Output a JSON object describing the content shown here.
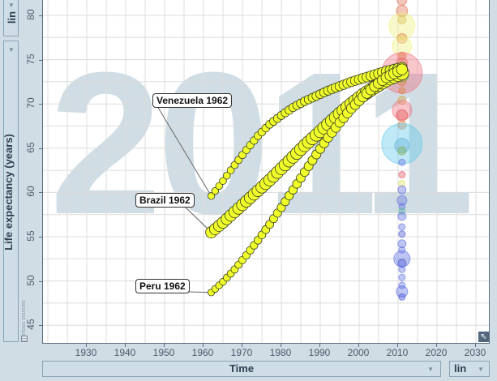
{
  "y_axis": {
    "label": "Life expectancy (years)",
    "scale": "lin",
    "ticks": [
      "80",
      "75",
      "70",
      "65",
      "60",
      "55",
      "50",
      "45"
    ]
  },
  "x_axis": {
    "label": "Time",
    "scale": "lin",
    "ticks": [
      "1930",
      "1940",
      "1950",
      "1960",
      "1970",
      "1980",
      "1990",
      "2000",
      "2010",
      "2020",
      "2030"
    ]
  },
  "year_watermark": "2011",
  "sources_text": "Various sources",
  "icons": {
    "dropdown": "▼",
    "fullscreen": "⇖"
  },
  "labels": {
    "venezuela": "Venezuela 1962",
    "brazil": "Brazil 1962",
    "peru": "Peru 1962"
  },
  "chart_data": {
    "type": "scatter",
    "title": "",
    "xlabel": "Time",
    "ylabel": "Life expectancy (years)",
    "xlim": [
      1919,
      2033
    ],
    "ylim": [
      43,
      81.7
    ],
    "grid": true,
    "current_year": 2011,
    "trail_color": "#f0ff2a",
    "trails": [
      {
        "name": "Venezuela",
        "start_label": "Venezuela 1962",
        "x": [
          1962,
          1965,
          1968,
          1971,
          1974,
          1977,
          1980,
          1983,
          1986,
          1989,
          1992,
          1995,
          1998,
          2001,
          2004,
          2007,
          2011
        ],
        "y": [
          59.6,
          61.3,
          63.1,
          64.8,
          66.4,
          67.7,
          68.7,
          69.6,
          70.3,
          70.9,
          71.5,
          72.0,
          72.5,
          72.9,
          73.3,
          73.7,
          74.1
        ],
        "size": "small"
      },
      {
        "name": "Brazil",
        "start_label": "Brazil 1962",
        "x": [
          1962,
          1965,
          1968,
          1971,
          1974,
          1977,
          1980,
          1983,
          1986,
          1989,
          1992,
          1995,
          1998,
          2001,
          2004,
          2007,
          2011
        ],
        "y": [
          55.5,
          56.6,
          57.8,
          59.0,
          60.2,
          61.4,
          62.7,
          64.0,
          65.3,
          66.5,
          67.7,
          68.9,
          70.0,
          71.0,
          71.9,
          72.7,
          73.5
        ],
        "size": "large"
      },
      {
        "name": "Peru",
        "start_label": "Peru 1962",
        "x": [
          1962,
          1965,
          1968,
          1971,
          1974,
          1977,
          1980,
          1983,
          1986,
          1989,
          1992,
          1995,
          1998,
          2001,
          2004,
          2007,
          2011
        ],
        "y": [
          48.7,
          49.9,
          51.3,
          52.9,
          54.6,
          56.4,
          58.3,
          60.3,
          62.3,
          64.3,
          66.2,
          67.9,
          69.5,
          70.8,
          72.0,
          73.0,
          73.9
        ],
        "size": "medium"
      }
    ],
    "bubbles_2011": [
      {
        "y": 81.7,
        "r": 6,
        "color": "#e07050"
      },
      {
        "y": 80.5,
        "r": 7,
        "color": "#e07050"
      },
      {
        "y": 79.5,
        "r": 5,
        "color": "#d0a040"
      },
      {
        "y": 78.8,
        "r": 16,
        "color": "#eef07a"
      },
      {
        "y": 77.4,
        "r": 6,
        "color": "#e08040"
      },
      {
        "y": 76.5,
        "r": 12,
        "color": "#eef07a"
      },
      {
        "y": 75.4,
        "r": 5,
        "color": "#e07050"
      },
      {
        "y": 74.6,
        "r": 7,
        "color": "#e07050"
      },
      {
        "y": 73.5,
        "r": 25,
        "color": "#f07080"
      },
      {
        "y": 73.2,
        "r": 8,
        "color": "#50c040"
      },
      {
        "y": 72.5,
        "r": 5,
        "color": "#e08040"
      },
      {
        "y": 71.5,
        "r": 4,
        "color": "#e08040"
      },
      {
        "y": 70.4,
        "r": 5,
        "color": "#d0a040"
      },
      {
        "y": 69.3,
        "r": 12,
        "color": "#f07080"
      },
      {
        "y": 68.7,
        "r": 7,
        "color": "#e05050"
      },
      {
        "y": 67.6,
        "r": 5,
        "color": "#e08040"
      },
      {
        "y": 65.5,
        "r": 25,
        "color": "#60c8e8"
      },
      {
        "y": 65.3,
        "r": 9,
        "color": "#60b0d8"
      },
      {
        "y": 64.7,
        "r": 5,
        "color": "#80b050"
      },
      {
        "y": 63.4,
        "r": 4,
        "color": "#6070e0"
      },
      {
        "y": 62.0,
        "r": 4,
        "color": "#e05060"
      },
      {
        "y": 61.0,
        "r": 4,
        "color": "#e0e060"
      },
      {
        "y": 60.3,
        "r": 5,
        "color": "#6070e0"
      },
      {
        "y": 59.1,
        "r": 6,
        "color": "#6070e0"
      },
      {
        "y": 58.4,
        "r": 4,
        "color": "#6070e0"
      },
      {
        "y": 57.9,
        "r": 4,
        "color": "#60c0a0"
      },
      {
        "y": 57.3,
        "r": 5,
        "color": "#6070e0"
      },
      {
        "y": 56.1,
        "r": 4,
        "color": "#6070e0"
      },
      {
        "y": 55.3,
        "r": 4,
        "color": "#4050d0"
      },
      {
        "y": 54.2,
        "r": 5,
        "color": "#6070e0"
      },
      {
        "y": 53.5,
        "r": 4,
        "color": "#6070e0"
      },
      {
        "y": 52.5,
        "r": 10,
        "color": "#6070e0"
      },
      {
        "y": 52.0,
        "r": 5,
        "color": "#4050d0"
      },
      {
        "y": 51.3,
        "r": 4,
        "color": "#6070e0"
      },
      {
        "y": 50.4,
        "r": 4,
        "color": "#6070e0"
      },
      {
        "y": 49.5,
        "r": 4,
        "color": "#6070e0"
      },
      {
        "y": 48.8,
        "r": 7,
        "color": "#6070e0"
      },
      {
        "y": 48.2,
        "r": 4,
        "color": "#4050d0"
      }
    ]
  }
}
